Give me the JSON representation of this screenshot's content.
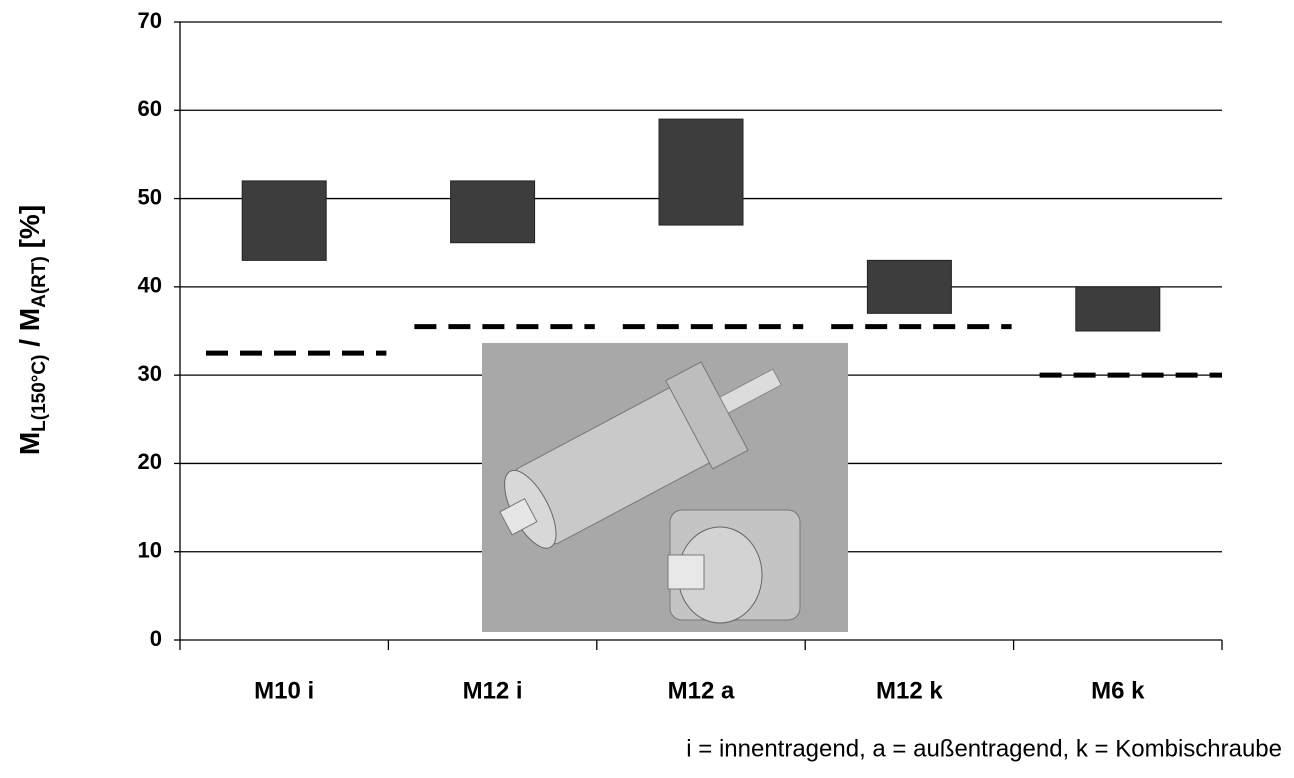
{
  "chart_data": {
    "type": "floating-bar",
    "ylabel": [
      "M",
      "L(150°C)",
      " / M",
      "A(RT)",
      " [%]"
    ],
    "categories": [
      "M10 i",
      "M12 i",
      "M12 a",
      "M12 k",
      "M6 k"
    ],
    "low": [
      43,
      45,
      47,
      37,
      35
    ],
    "high": [
      52,
      52,
      59,
      43,
      40
    ],
    "reference": [
      32.5,
      35.5,
      35.5,
      35.5,
      30
    ],
    "color": "#3d3d3d",
    "reference_color": "#000000",
    "ylim": [
      0,
      70
    ],
    "yticks": [
      0,
      10,
      20,
      30,
      40,
      50,
      60,
      70
    ],
    "grid": true,
    "footnote": "i = innentragend, a = außentragend, k = Kombischraube"
  }
}
